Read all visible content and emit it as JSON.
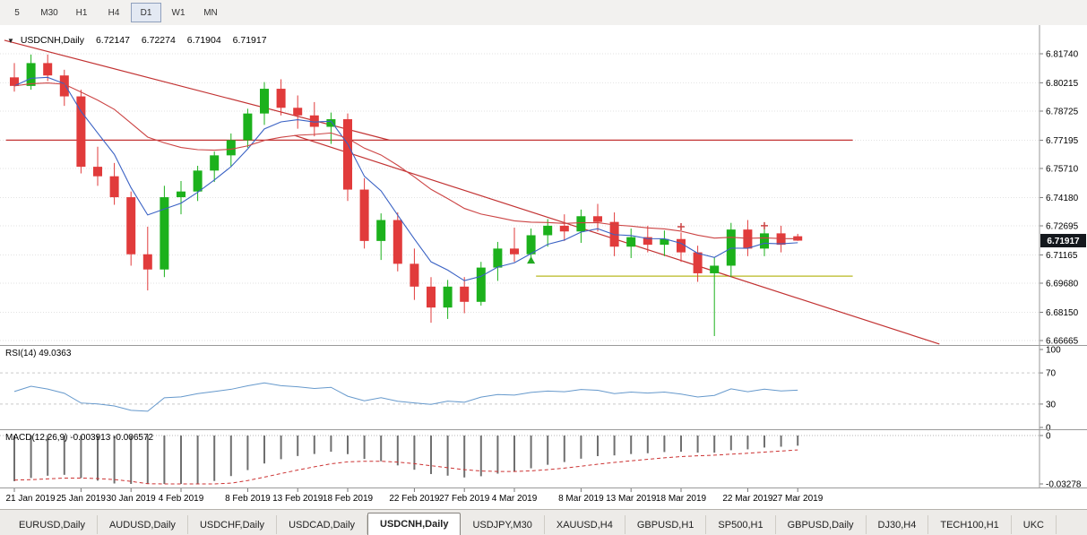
{
  "toolbar": {
    "timeframes": [
      {
        "label": "5",
        "active": false
      },
      {
        "label": "M30",
        "active": false
      },
      {
        "label": "H1",
        "active": false
      },
      {
        "label": "H4",
        "active": false
      },
      {
        "label": "D1",
        "active": true
      },
      {
        "label": "W1",
        "active": false
      },
      {
        "label": "MN",
        "active": false
      }
    ]
  },
  "chart": {
    "symbol_label": "USDCNH,Daily",
    "ohlc": {
      "open": "6.72147",
      "high": "6.72274",
      "low": "6.71904",
      "close": "6.71917"
    }
  },
  "rsi": {
    "label": "RSI(14) 49.0363"
  },
  "macd": {
    "label": "MACD(12,26,9) -0.003913 -0.006572"
  },
  "tabs": [
    {
      "label": "EURUSD,Daily",
      "active": false
    },
    {
      "label": "AUDUSD,Daily",
      "active": false
    },
    {
      "label": "USDCHF,Daily",
      "active": false
    },
    {
      "label": "USDCAD,Daily",
      "active": false
    },
    {
      "label": "USDCNH,Daily",
      "active": true
    },
    {
      "label": "USDJPY,M30",
      "active": false
    },
    {
      "label": "XAUUSD,H4",
      "active": false
    },
    {
      "label": "GBPUSD,H1",
      "active": false
    },
    {
      "label": "SP500,H1",
      "active": false
    },
    {
      "label": "GBPUSD,Daily",
      "active": false
    },
    {
      "label": "DJ30,H4",
      "active": false
    },
    {
      "label": "TECH100,H1",
      "active": false
    },
    {
      "label": "UKC",
      "active": false
    }
  ],
  "chart_data": {
    "type": "candlestick",
    "symbol": "USDCNH",
    "period": "Daily",
    "ohlc_current": {
      "open": 6.72147,
      "high": 6.72274,
      "low": 6.71904,
      "close": 6.71917
    },
    "price_range": {
      "top": 6.8174,
      "bottom": 6.66665
    },
    "price_axis_labels": [
      "6.81740",
      "6.80215",
      "6.78725",
      "6.77195",
      "6.75710",
      "6.74180",
      "6.72695",
      "6.71165",
      "6.69680",
      "6.68150",
      "6.66665"
    ],
    "candles": {
      "dates": [
        "21 Jan",
        "22 Jan",
        "23 Jan",
        "24 Jan",
        "25 Jan",
        "28 Jan",
        "29 Jan",
        "30 Jan",
        "31 Jan",
        "1 Feb",
        "4 Feb",
        "5 Feb",
        "6 Feb",
        "7 Feb",
        "8 Feb",
        "11 Feb",
        "12 Feb",
        "13 Feb",
        "14 Feb",
        "15 Feb",
        "18 Feb",
        "19 Feb",
        "20 Feb",
        "21 Feb",
        "22 Feb",
        "25 Feb",
        "26 Feb",
        "27 Feb",
        "28 Feb",
        "1 Mar",
        "4 Mar",
        "5 Mar",
        "6 Mar",
        "7 Mar",
        "8 Mar",
        "11 Mar",
        "12 Mar",
        "13 Mar",
        "14 Mar",
        "15 Mar",
        "18 Mar",
        "19 Mar",
        "20 Mar",
        "21 Mar",
        "22 Mar",
        "25 Mar",
        "26 Mar",
        "27 Mar"
      ],
      "o": [
        6.805,
        6.8005,
        6.8125,
        6.806,
        6.795,
        6.758,
        6.753,
        6.742,
        6.712,
        6.704,
        6.742,
        6.745,
        6.756,
        6.764,
        6.772,
        6.786,
        6.799,
        6.789,
        6.785,
        6.779,
        6.783,
        6.746,
        6.719,
        6.73,
        6.707,
        6.695,
        6.684,
        6.695,
        6.687,
        6.705,
        6.715,
        6.712,
        6.722,
        6.727,
        6.724,
        6.732,
        6.729,
        6.716,
        6.721,
        6.717,
        6.72,
        6.713,
        6.702,
        6.706,
        6.725,
        6.715,
        6.723,
        6.72147
      ],
      "h": [
        6.8125,
        6.817,
        6.817,
        6.809,
        6.7985,
        6.7685,
        6.76,
        6.745,
        6.7265,
        6.748,
        6.7505,
        6.7585,
        6.766,
        6.7755,
        6.7885,
        6.8025,
        6.804,
        6.7955,
        6.792,
        6.7865,
        6.786,
        6.752,
        6.7335,
        6.734,
        6.715,
        6.7,
        6.6985,
        6.7,
        6.708,
        6.7185,
        6.726,
        6.7255,
        6.7305,
        6.733,
        6.7355,
        6.7385,
        6.734,
        6.7255,
        6.727,
        6.7245,
        6.7235,
        6.7165,
        6.7105,
        6.7285,
        6.73,
        6.7265,
        6.727,
        6.72274
      ],
      "l": [
        6.7975,
        6.7985,
        6.803,
        6.79,
        6.7545,
        6.748,
        6.738,
        6.706,
        6.693,
        6.7,
        6.733,
        6.74,
        6.75,
        6.758,
        6.768,
        6.78,
        6.785,
        6.778,
        6.774,
        6.77,
        6.74,
        6.715,
        6.709,
        6.703,
        6.688,
        6.676,
        6.678,
        6.681,
        6.685,
        6.698,
        6.708,
        6.709,
        6.716,
        6.719,
        6.718,
        6.724,
        6.711,
        6.71,
        6.713,
        6.711,
        6.708,
        6.6975,
        6.669,
        6.7,
        6.711,
        6.711,
        6.713,
        6.71904
      ],
      "c": [
        6.8005,
        6.8125,
        6.806,
        6.795,
        6.758,
        6.753,
        6.742,
        6.712,
        6.704,
        6.742,
        6.745,
        6.756,
        6.764,
        6.772,
        6.786,
        6.799,
        6.789,
        6.785,
        6.779,
        6.783,
        6.746,
        6.719,
        6.73,
        6.707,
        6.695,
        6.684,
        6.695,
        6.687,
        6.705,
        6.715,
        6.712,
        6.722,
        6.727,
        6.724,
        6.732,
        6.729,
        6.716,
        6.721,
        6.717,
        6.72,
        6.713,
        6.702,
        6.706,
        6.725,
        6.715,
        6.723,
        6.717,
        6.71917
      ]
    },
    "date_labels": [
      {
        "index": 0,
        "label": "21 Jan 2019"
      },
      {
        "index": 4,
        "label": "25 Jan 2019"
      },
      {
        "index": 7,
        "label": "30 Jan 2019"
      },
      {
        "index": 10,
        "label": "4 Feb 2019"
      },
      {
        "index": 14,
        "label": "8 Feb 2019"
      },
      {
        "index": 17,
        "label": "13 Feb 2019"
      },
      {
        "index": 20,
        "label": "18 Feb 2019"
      },
      {
        "index": 24,
        "label": "22 Feb 2019"
      },
      {
        "index": 27,
        "label": "27 Feb 2019"
      },
      {
        "index": 30,
        "label": "4 Mar 2019"
      },
      {
        "index": 34,
        "label": "8 Mar 2019"
      },
      {
        "index": 37,
        "label": "13 Mar 2019"
      },
      {
        "index": 40,
        "label": "18 Mar 2019"
      },
      {
        "index": 44,
        "label": "22 Mar 2019"
      },
      {
        "index": 47,
        "label": "27 Mar 2019"
      }
    ],
    "moving_averages": [
      {
        "name": "fast-ma",
        "type": "ema",
        "period": 5,
        "color": "#3a62c4"
      },
      {
        "name": "slow-ma",
        "type": "ema",
        "period": 20,
        "color": "#cc4444"
      }
    ],
    "trendlines": [
      {
        "name": "descending-trendline-upper",
        "color": "#c23232",
        "from": {
          "index": -0.6,
          "price": 6.8245
        },
        "to": {
          "index": 22.5,
          "price": 6.772
        }
      },
      {
        "name": "descending-trendline-long",
        "color": "#c23232",
        "from": {
          "index": 16.8,
          "price": 6.7745
        },
        "to": {
          "index": 55.5,
          "price": 6.6648
        }
      }
    ],
    "hlines": [
      {
        "name": "resistance-line",
        "color": "#c23232",
        "price": 6.772,
        "from_index": -0.5,
        "to_index": 50.3
      },
      {
        "name": "support-line",
        "color": "#b9b921",
        "price": 6.7005,
        "from_index": 31.3,
        "to_index": 50.3
      }
    ],
    "markers": [
      {
        "type": "arrow-up",
        "index": 31,
        "price": 6.7085,
        "color": "#22aa22"
      },
      {
        "type": "cross",
        "index": 40,
        "price": 6.7265,
        "color": "#cc4444"
      },
      {
        "type": "cross",
        "index": 45,
        "price": 6.727,
        "color": "#cc4444"
      }
    ],
    "rsi": {
      "period": 14,
      "current": 49.0363,
      "levels": [
        70,
        30
      ],
      "axis_labels": [
        "100",
        "70",
        "30",
        "0"
      ],
      "color": "#6699cc"
    },
    "macd": {
      "fast": 12,
      "slow": 26,
      "signal_period": 9,
      "current": -0.003913,
      "signal_current": -0.006572,
      "axis_labels": [
        "0",
        "-0.03278"
      ],
      "axis_min": -0.03278,
      "hist_color": "#6f6f6f",
      "signal_color": "#cc3333"
    },
    "colors": {
      "bull": "#1cb11c",
      "bear": "#e13b3b",
      "grid": "#e2e2e2",
      "separator": "#9a9a9a",
      "badge_bg": "#14181d",
      "badge_fg": "#ffffff"
    }
  }
}
